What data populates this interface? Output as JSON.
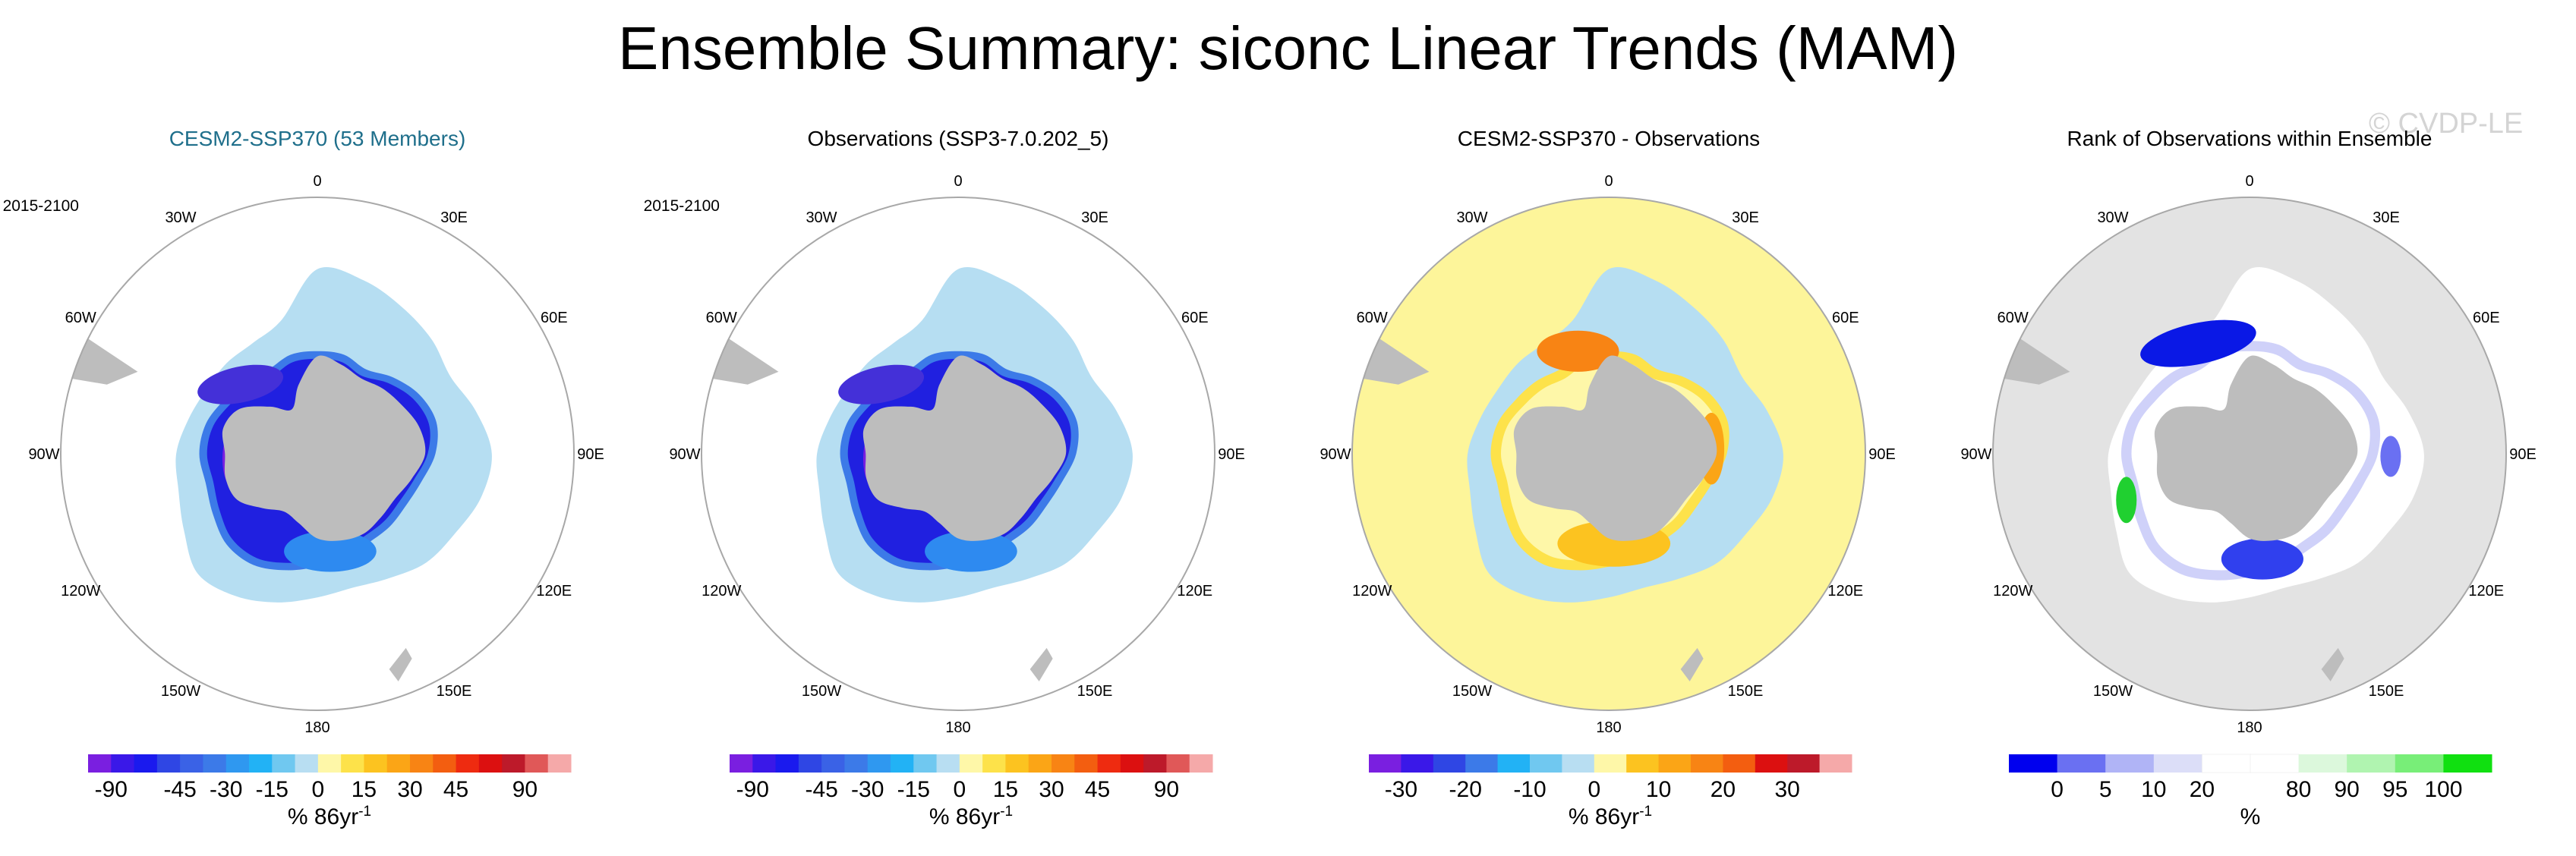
{
  "title": "Ensemble Summary: siconc Linear Trends (MAM)",
  "watermark": "© CVDP-LE",
  "colors": {
    "land": "#bdbdbd",
    "map_border": "#a8a8a8",
    "title_blue": "#1f6f8b",
    "diff_ocean": "#fdf59a",
    "rank_ocean": "#e3e3e3"
  },
  "chart_data": [
    {
      "type": "heatmap",
      "projection": "south-polar-stereographic",
      "title": "CESM2-SSP370 (53 Members)",
      "period": "2015-2100",
      "lon_labels": [
        "0",
        "30E",
        "60E",
        "90E",
        "120E",
        "150E",
        "180",
        "150W",
        "120W",
        "90W",
        "60W",
        "30W"
      ],
      "field_colors": {
        "outer_zone": "#b6def2",
        "inner_ring": "#2020e0",
        "weddell": "#4430d8",
        "ross": "#2e8af0"
      },
      "colorbar": {
        "colors": [
          "#7a1fe0",
          "#3a18e8",
          "#1a1aee",
          "#2f46e4",
          "#3a62e6",
          "#3c7ae8",
          "#2f98f0",
          "#22b2f5",
          "#70c8f0",
          "#b8def2",
          "#fef7a8",
          "#fde24a",
          "#fcc320",
          "#fba516",
          "#f88414",
          "#f35e10",
          "#ee2b10",
          "#dc1010",
          "#bd1a2a",
          "#e05858",
          "#f5a9a9"
        ],
        "tick_labels": [
          "-90",
          "-45",
          "-30",
          "-15",
          "0",
          "15",
          "30",
          "45",
          "90"
        ],
        "tick_bins": [
          1,
          4,
          6,
          8,
          10,
          12,
          14,
          16,
          19
        ],
        "units": "% 86yr",
        "units_sup": "-1"
      }
    },
    {
      "type": "heatmap",
      "projection": "south-polar-stereographic",
      "title": "Observations (SSP3-7.0.202_5)",
      "period": "2015-2100",
      "lon_labels": [
        "0",
        "30E",
        "60E",
        "90E",
        "120E",
        "150E",
        "180",
        "150W",
        "120W",
        "90W",
        "60W",
        "30W"
      ],
      "field_colors": {
        "outer_zone": "#b6def2",
        "inner_ring": "#2020e0",
        "weddell": "#4430d8",
        "ross": "#2e8af0"
      },
      "colorbar": {
        "colors": [
          "#7a1fe0",
          "#3a18e8",
          "#1a1aee",
          "#2f46e4",
          "#3a62e6",
          "#3c7ae8",
          "#2f98f0",
          "#22b2f5",
          "#70c8f0",
          "#b8def2",
          "#fef7a8",
          "#fde24a",
          "#fcc320",
          "#fba516",
          "#f88414",
          "#f35e10",
          "#ee2b10",
          "#dc1010",
          "#bd1a2a",
          "#e05858",
          "#f5a9a9"
        ],
        "tick_labels": [
          "-90",
          "-45",
          "-30",
          "-15",
          "0",
          "15",
          "30",
          "45",
          "90"
        ],
        "tick_bins": [
          1,
          4,
          6,
          8,
          10,
          12,
          14,
          16,
          19
        ],
        "units": "% 86yr",
        "units_sup": "-1"
      }
    },
    {
      "type": "heatmap",
      "projection": "south-polar-stereographic",
      "title": "CESM2-SSP370 - Observations",
      "period": "",
      "lon_labels": [
        "0",
        "30E",
        "60E",
        "90E",
        "120E",
        "150E",
        "180",
        "150W",
        "120W",
        "90W",
        "60W",
        "30W"
      ],
      "field_colors": {
        "outer_zone": "#b6def2",
        "ring": "#fde24a",
        "weddell": "#f88414",
        "ross": "#fcc320"
      },
      "colorbar": {
        "colors": [
          "#7a1fe0",
          "#3a18e8",
          "#2f46e4",
          "#3c7ae8",
          "#22b2f5",
          "#70c8f0",
          "#b8def2",
          "#fef7a8",
          "#fcc320",
          "#fba516",
          "#f88414",
          "#f35e10",
          "#dc1010",
          "#bd1a2a",
          "#f5a9a9"
        ],
        "tick_labels": [
          "-30",
          "-20",
          "-10",
          "0",
          "10",
          "20",
          "30"
        ],
        "tick_bins": [
          1,
          3,
          5,
          7,
          9,
          11,
          13
        ],
        "units": "% 86yr",
        "units_sup": "-1"
      }
    },
    {
      "type": "heatmap",
      "projection": "south-polar-stereographic",
      "title": "Rank of Observations within Ensemble",
      "period": "",
      "lon_labels": [
        "0",
        "30E",
        "60E",
        "90E",
        "120E",
        "150E",
        "180",
        "150W",
        "120W",
        "90W",
        "60W",
        "30W"
      ],
      "field_colors": {
        "outer_zone": "#ffffff",
        "weddell": "#0a18e6",
        "ross": "#3040ee",
        "speckle": "#a8acf4",
        "green": "#20d030"
      },
      "colorbar": {
        "colors": [
          "#0000ee",
          "#6a70f2",
          "#b0b4f6",
          "#dcdef8",
          "#ffffff",
          "#ffffff",
          "#dcf8dc",
          "#b0f4b0",
          "#78ee78",
          "#10e010"
        ],
        "tick_labels": [
          "0",
          "5",
          "10",
          "20",
          "80",
          "90",
          "95",
          "100"
        ],
        "tick_bins": [
          1,
          2,
          3,
          4,
          6,
          7,
          8,
          9
        ],
        "units": "%",
        "units_sup": ""
      }
    }
  ]
}
